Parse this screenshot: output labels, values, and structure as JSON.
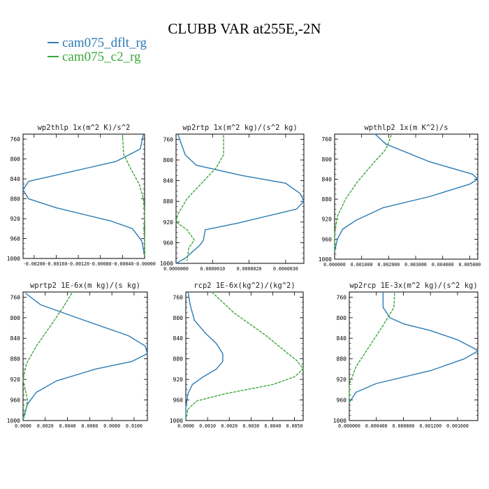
{
  "title": "CLUBB VAR at255E,-2N",
  "legend": [
    {
      "label": "cam075_dflt_rg",
      "color": "#2b7bb5"
    },
    {
      "label": "cam075_c2_rg",
      "color": "#3aa83a"
    }
  ],
  "chart_data": [
    {
      "type": "line",
      "title": "wp2thlp  1x(m^2 K)/s^2",
      "ylim": [
        1000,
        750
      ],
      "y_reversed": true,
      "yticks": [
        760,
        800,
        840,
        880,
        920,
        960,
        1000
      ],
      "xlim": [
        -0.0022,
        0.0
      ],
      "xticks": [
        -0.002,
        -0.0016,
        -0.0012,
        -0.0008,
        -0.0004,
        0.0
      ],
      "xtick_labels": [
        "-0.00200",
        "-0.00160",
        "-0.00120",
        "-0.00080",
        "-0.00040",
        "-0.00000"
      ],
      "series": [
        {
          "name": "cam075_dflt_rg",
          "color": "#2b7bb5",
          "points": [
            [
              -2e-05,
              750
            ],
            [
              -8e-05,
              780
            ],
            [
              -0.00052,
              805
            ],
            [
              -0.0021,
              845
            ],
            [
              -0.0022,
              862
            ],
            [
              -0.0021,
              880
            ],
            [
              -0.0016,
              898
            ],
            [
              -0.0006,
              925
            ],
            [
              -0.00022,
              940
            ],
            [
              -5e-05,
              965
            ],
            [
              0.0,
              995
            ]
          ]
        },
        {
          "name": "cam075_c2_rg",
          "color": "#3aa83a",
          "points": [
            [
              -0.0004,
              750
            ],
            [
              -0.00038,
              790
            ],
            [
              -0.00025,
              820
            ],
            [
              -0.0001,
              850
            ],
            [
              -2e-05,
              880
            ],
            [
              0.0,
              910
            ],
            [
              -1e-05,
              940
            ],
            [
              0.0,
              970
            ],
            [
              0.0,
              995
            ]
          ]
        }
      ]
    },
    {
      "type": "line",
      "title": "wp2rtp  1x(m^2 kg)/(s^2 kg)",
      "ylim": [
        1000,
        750
      ],
      "y_reversed": true,
      "yticks": [
        760,
        800,
        840,
        880,
        920,
        960,
        1000
      ],
      "xlim": [
        0.0,
        3.5e-06
      ],
      "xticks": [
        0.0,
        1e-06,
        2e-06,
        3e-06
      ],
      "xtick_labels": [
        "0.0000000",
        "0.0000010",
        "0.0000020",
        "0.0000030"
      ],
      "series": [
        {
          "name": "cam075_dflt_rg",
          "color": "#2b7bb5",
          "points": [
            [
              5e-08,
              750
            ],
            [
              2.5e-07,
              790
            ],
            [
              5.5e-07,
              810
            ],
            [
              1.8e-06,
              830
            ],
            [
              3e-06,
              845
            ],
            [
              3.4e-06,
              865
            ],
            [
              3.5e-06,
              880
            ],
            [
              3.3e-06,
              895
            ],
            [
              1.7e-06,
              922
            ],
            [
              8e-07,
              935
            ],
            [
              7.5e-07,
              955
            ],
            [
              6.5e-07,
              965
            ],
            [
              2.5e-07,
              990
            ],
            [
              0.0,
              1000
            ]
          ]
        },
        {
          "name": "cam075_c2_rg",
          "color": "#3aa83a",
          "points": [
            [
              1.3e-06,
              752
            ],
            [
              1.3e-06,
              790
            ],
            [
              1.1e-06,
              815
            ],
            [
              7e-07,
              845
            ],
            [
              3e-07,
              875
            ],
            [
              5e-08,
              905
            ],
            [
              0.0,
              920
            ],
            [
              3e-07,
              935
            ],
            [
              5e-07,
              955
            ],
            [
              3.5e-07,
              970
            ],
            [
              3e-07,
              995
            ]
          ]
        }
      ]
    },
    {
      "type": "line",
      "title": "wpthlp2  1x(m K^2)/s",
      "ylim": [
        1000,
        750
      ],
      "y_reversed": true,
      "yticks": [
        760,
        800,
        840,
        880,
        920,
        960,
        1000
      ],
      "xlim": [
        0.0,
        0.0053
      ],
      "xticks": [
        0.0,
        0.001,
        0.002,
        0.003,
        0.004,
        0.005
      ],
      "xtick_labels": [
        "0.000000",
        "0.001000",
        "0.002000",
        "0.003000",
        "0.004000",
        "0.005000"
      ],
      "series": [
        {
          "name": "cam075_dflt_rg",
          "color": "#2b7bb5",
          "points": [
            [
              0.0015,
              750
            ],
            [
              0.0019,
              770
            ],
            [
              0.0035,
              805
            ],
            [
              0.0051,
              830
            ],
            [
              0.0053,
              840
            ],
            [
              0.005,
              850
            ],
            [
              0.0035,
              875
            ],
            [
              0.0018,
              897
            ],
            [
              0.0008,
              922
            ],
            [
              0.0003,
              940
            ],
            [
              0.0001,
              960
            ],
            [
              0.0,
              985
            ]
          ]
        },
        {
          "name": "cam075_c2_rg",
          "color": "#3aa83a",
          "points": [
            [
              0.0021,
              752
            ],
            [
              0.0019,
              780
            ],
            [
              0.0014,
              810
            ],
            [
              0.00085,
              845
            ],
            [
              0.0004,
              880
            ],
            [
              0.0001,
              915
            ],
            [
              0.0,
              950
            ],
            [
              0.0,
              985
            ]
          ]
        }
      ]
    },
    {
      "type": "line",
      "title": "wprtp2  1E-6x(m kg)/(s kg)",
      "ylim": [
        1000,
        750
      ],
      "y_reversed": true,
      "yticks": [
        760,
        800,
        840,
        880,
        920,
        960,
        1000
      ],
      "xlim": [
        0.0,
        0.0112
      ],
      "xticks": [
        0.0,
        0.002,
        0.004,
        0.006,
        0.008,
        0.01
      ],
      "xtick_labels": [
        "0.0000",
        "0.0020",
        "0.0040",
        "0.0060",
        "0.0080",
        "0.0100"
      ],
      "series": [
        {
          "name": "cam075_dflt_rg",
          "color": "#2b7bb5",
          "points": [
            [
              0.0002,
              752
            ],
            [
              0.0016,
              775
            ],
            [
              0.0055,
              805
            ],
            [
              0.0095,
              835
            ],
            [
              0.011,
              855
            ],
            [
              0.0112,
              870
            ],
            [
              0.0098,
              885
            ],
            [
              0.0065,
              900
            ],
            [
              0.003,
              923
            ],
            [
              0.0012,
              945
            ],
            [
              0.0004,
              968
            ],
            [
              0.0,
              995
            ]
          ]
        },
        {
          "name": "cam075_c2_rg",
          "color": "#3aa83a",
          "points": [
            [
              0.0044,
              752
            ],
            [
              0.0036,
              780
            ],
            [
              0.0025,
              815
            ],
            [
              0.0012,
              855
            ],
            [
              0.0003,
              890
            ],
            [
              0.0,
              920
            ],
            [
              0.0002,
              940
            ],
            [
              0.0004,
              960
            ],
            [
              0.0003,
              975
            ],
            [
              0.0001,
              995
            ]
          ]
        }
      ]
    },
    {
      "type": "line",
      "title": "rcp2  1E-6x(kg^2)/(kg^2)",
      "ylim": [
        1000,
        750
      ],
      "y_reversed": true,
      "yticks": [
        760,
        800,
        840,
        880,
        920,
        960,
        1000
      ],
      "xlim": [
        0.0,
        0.0054
      ],
      "xticks": [
        0.0,
        0.001,
        0.002,
        0.003,
        0.004,
        0.005
      ],
      "xtick_labels": [
        "0.0000",
        "0.0010",
        "0.0020",
        "0.0030",
        "0.0040",
        "0.0050"
      ],
      "series": [
        {
          "name": "cam075_dflt_rg",
          "color": "#2b7bb5",
          "points": [
            [
              0.0001,
              750
            ],
            [
              0.0002,
              775
            ],
            [
              0.0004,
              805
            ],
            [
              0.0009,
              830
            ],
            [
              0.0014,
              850
            ],
            [
              0.0017,
              870
            ],
            [
              0.0017,
              885
            ],
            [
              0.0014,
              900
            ],
            [
              0.0008,
              915
            ],
            [
              0.0003,
              930
            ],
            [
              0.0001,
              948
            ],
            [
              0.0,
              975
            ],
            [
              0.0,
              998
            ]
          ]
        },
        {
          "name": "cam075_c2_rg",
          "color": "#3aa83a",
          "points": [
            [
              0.0012,
              750
            ],
            [
              0.0022,
              790
            ],
            [
              0.0037,
              835
            ],
            [
              0.0047,
              870
            ],
            [
              0.0051,
              883
            ],
            [
              0.0054,
              900
            ],
            [
              0.005,
              915
            ],
            [
              0.004,
              930
            ],
            [
              0.0018,
              948
            ],
            [
              0.0005,
              962
            ],
            [
              0.0001,
              978
            ],
            [
              0.0,
              998
            ]
          ]
        }
      ]
    },
    {
      "type": "line",
      "title": "wp2rcp  1E-3x(m^2 kg)/(s^2 kg)",
      "ylim": [
        1000,
        750
      ],
      "y_reversed": true,
      "yticks": [
        760,
        800,
        840,
        880,
        920,
        960,
        1000
      ],
      "xlim": [
        0.0,
        0.0019
      ],
      "xticks": [
        0.0,
        0.0004,
        0.0008,
        0.0012,
        0.0016
      ],
      "xtick_labels": [
        "0.000000",
        "0.000400",
        "0.000800",
        "0.001200",
        "0.001600"
      ],
      "series": [
        {
          "name": "cam075_dflt_rg",
          "color": "#2b7bb5",
          "points": [
            [
              0.0005,
              750
            ],
            [
              0.0005,
              780
            ],
            [
              0.0006,
              800
            ],
            [
              0.0008,
              812
            ],
            [
              0.0012,
              825
            ],
            [
              0.0016,
              843
            ],
            [
              0.00185,
              860
            ],
            [
              0.0019,
              865
            ],
            [
              0.0017,
              880
            ],
            [
              0.0012,
              903
            ],
            [
              0.0004,
              928
            ],
            [
              0.0001,
              945
            ],
            [
              0.0,
              965
            ]
          ]
        },
        {
          "name": "cam075_c2_rg",
          "color": "#3aa83a",
          "points": [
            [
              0.00067,
              752
            ],
            [
              0.00066,
              780
            ],
            [
              0.0005,
              815
            ],
            [
              0.0003,
              855
            ],
            [
              0.0001,
              895
            ],
            [
              0.0,
              930
            ],
            [
              0.0,
              965
            ]
          ]
        }
      ]
    }
  ]
}
